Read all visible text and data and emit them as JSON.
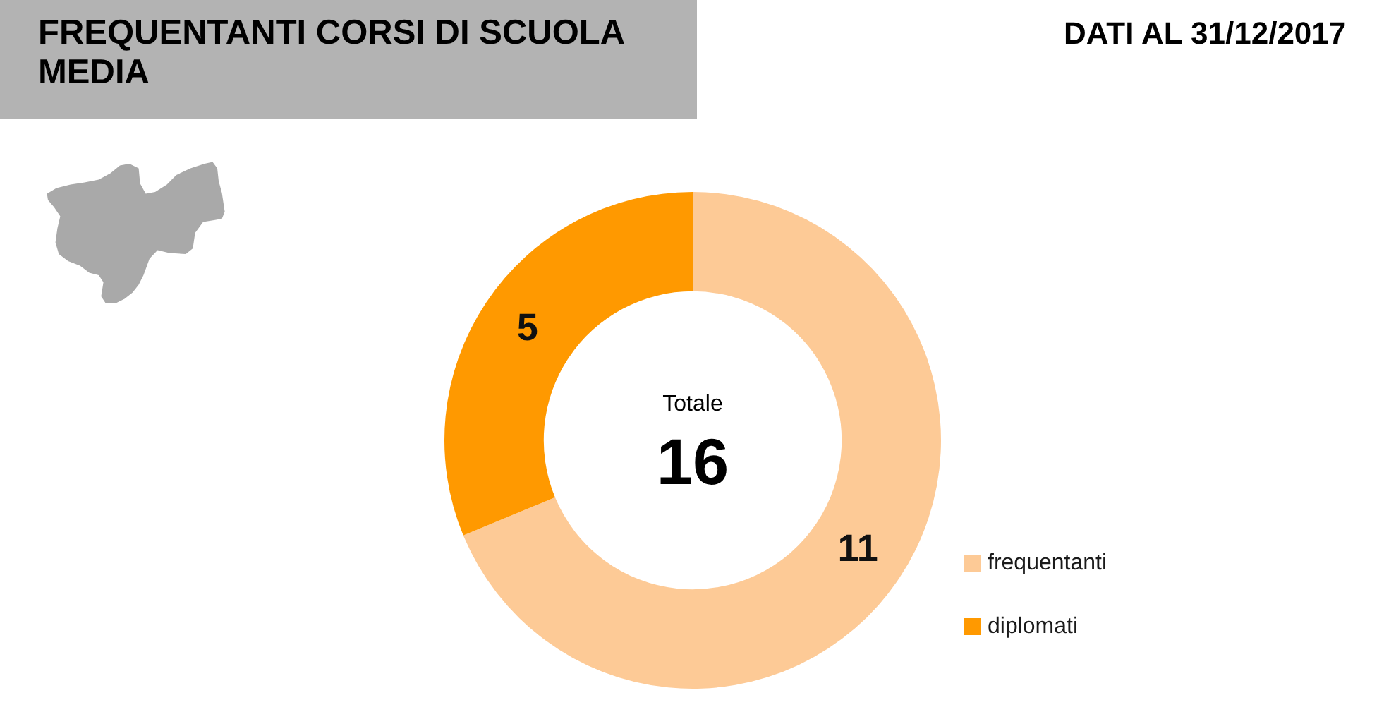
{
  "chart_data": {
    "type": "donut",
    "title": "FREQUENTANTI CORSI DI SCUOLA MEDIA",
    "subtitle": "DATI AL 31/12/2017",
    "categories": [
      "frequentanti",
      "diplomati"
    ],
    "values": [
      11,
      5
    ],
    "colors": [
      "#fdca96",
      "#ff9900"
    ],
    "data_labels": true,
    "legend": "right",
    "annotations": [
      "Totale",
      "16"
    ]
  }
}
